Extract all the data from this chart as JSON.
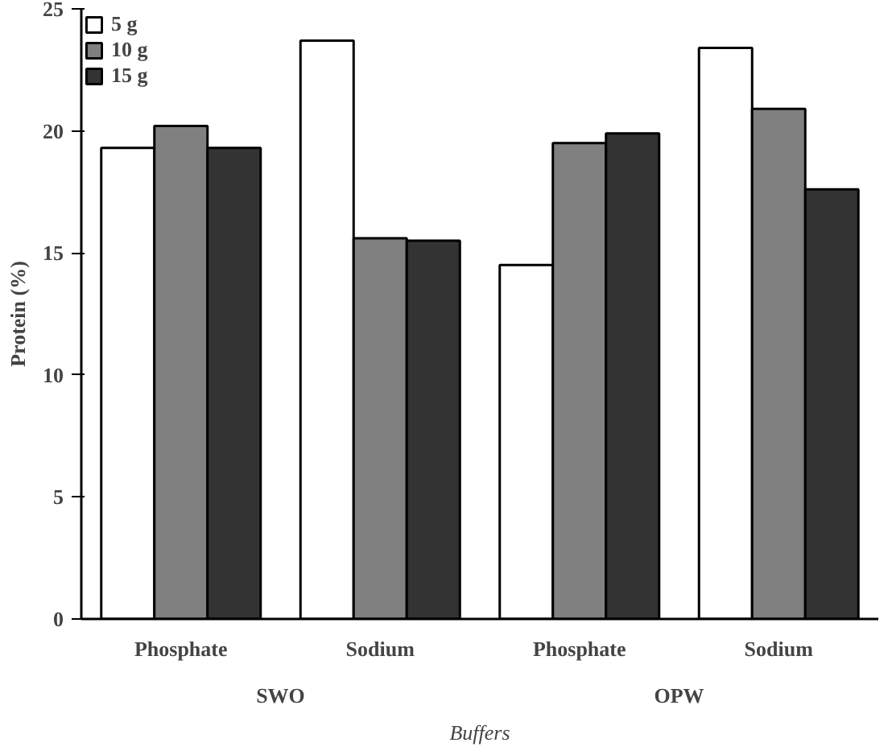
{
  "chart_data": {
    "type": "bar",
    "xlabel": "Buffers",
    "ylabel": "Protein (%)",
    "categories": [
      "Phosphate",
      "Sodium",
      "Phosphate",
      "Sodium"
    ],
    "annotations": [
      "SWO",
      "OPW"
    ],
    "series": [
      {
        "name": "5 g",
        "color": "#ffffff",
        "values": [
          19.3,
          23.7,
          14.5,
          23.4
        ]
      },
      {
        "name": "10 g",
        "color": "#808080",
        "values": [
          20.2,
          15.6,
          19.5,
          20.9
        ]
      },
      {
        "name": "15 g",
        "color": "#333333",
        "values": [
          19.3,
          15.5,
          19.9,
          17.6
        ]
      }
    ],
    "ylim": [
      0,
      25
    ],
    "yticks": [
      0,
      5,
      10,
      15,
      20,
      25
    ],
    "grid": false,
    "legend": "top left"
  }
}
